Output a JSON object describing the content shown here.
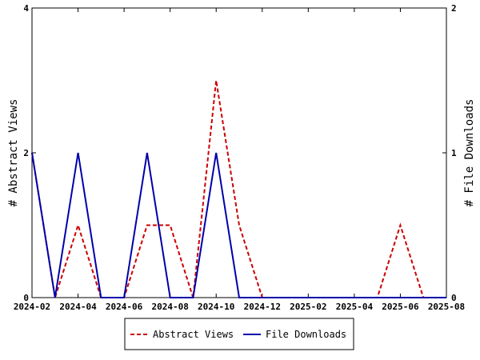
{
  "chart_data": {
    "type": "line",
    "x": [
      "2024-02",
      "2024-03",
      "2024-04",
      "2024-05",
      "2024-06",
      "2024-07",
      "2024-08",
      "2024-09",
      "2024-10",
      "2024-11",
      "2024-12",
      "2025-01",
      "2025-02",
      "2025-03",
      "2025-04",
      "2025-05",
      "2025-06",
      "2025-07",
      "2025-08"
    ],
    "x_ticks": [
      "2024-02",
      "2024-04",
      "2024-06",
      "2024-08",
      "2024-10",
      "2024-12",
      "2025-02",
      "2025-04",
      "2025-06",
      "2025-08"
    ],
    "series": [
      {
        "name": "Abstract Views",
        "axis": "left",
        "color": "#cc0000",
        "dash": "dashed",
        "values": [
          2,
          0,
          1,
          0,
          0,
          1,
          1,
          0,
          3,
          1,
          0,
          0,
          0,
          0,
          0,
          0,
          1,
          0,
          0
        ]
      },
      {
        "name": "File Downloads",
        "axis": "right",
        "color": "#0000aa",
        "dash": "solid",
        "values": [
          1,
          0,
          1,
          0,
          0,
          1,
          0,
          0,
          1,
          0,
          0,
          0,
          0,
          0,
          0,
          0,
          0,
          0,
          0
        ]
      }
    ],
    "ylabel_left": "# Abstract Views",
    "ylabel_right": "# File Downloads",
    "ylim_left": [
      0,
      4
    ],
    "ylim_right": [
      0,
      2
    ],
    "yticks_left": [
      "0",
      "2",
      "4"
    ],
    "yticks_right": [
      "0",
      "1",
      "2"
    ],
    "legend_position": "bottom",
    "grid": false
  }
}
